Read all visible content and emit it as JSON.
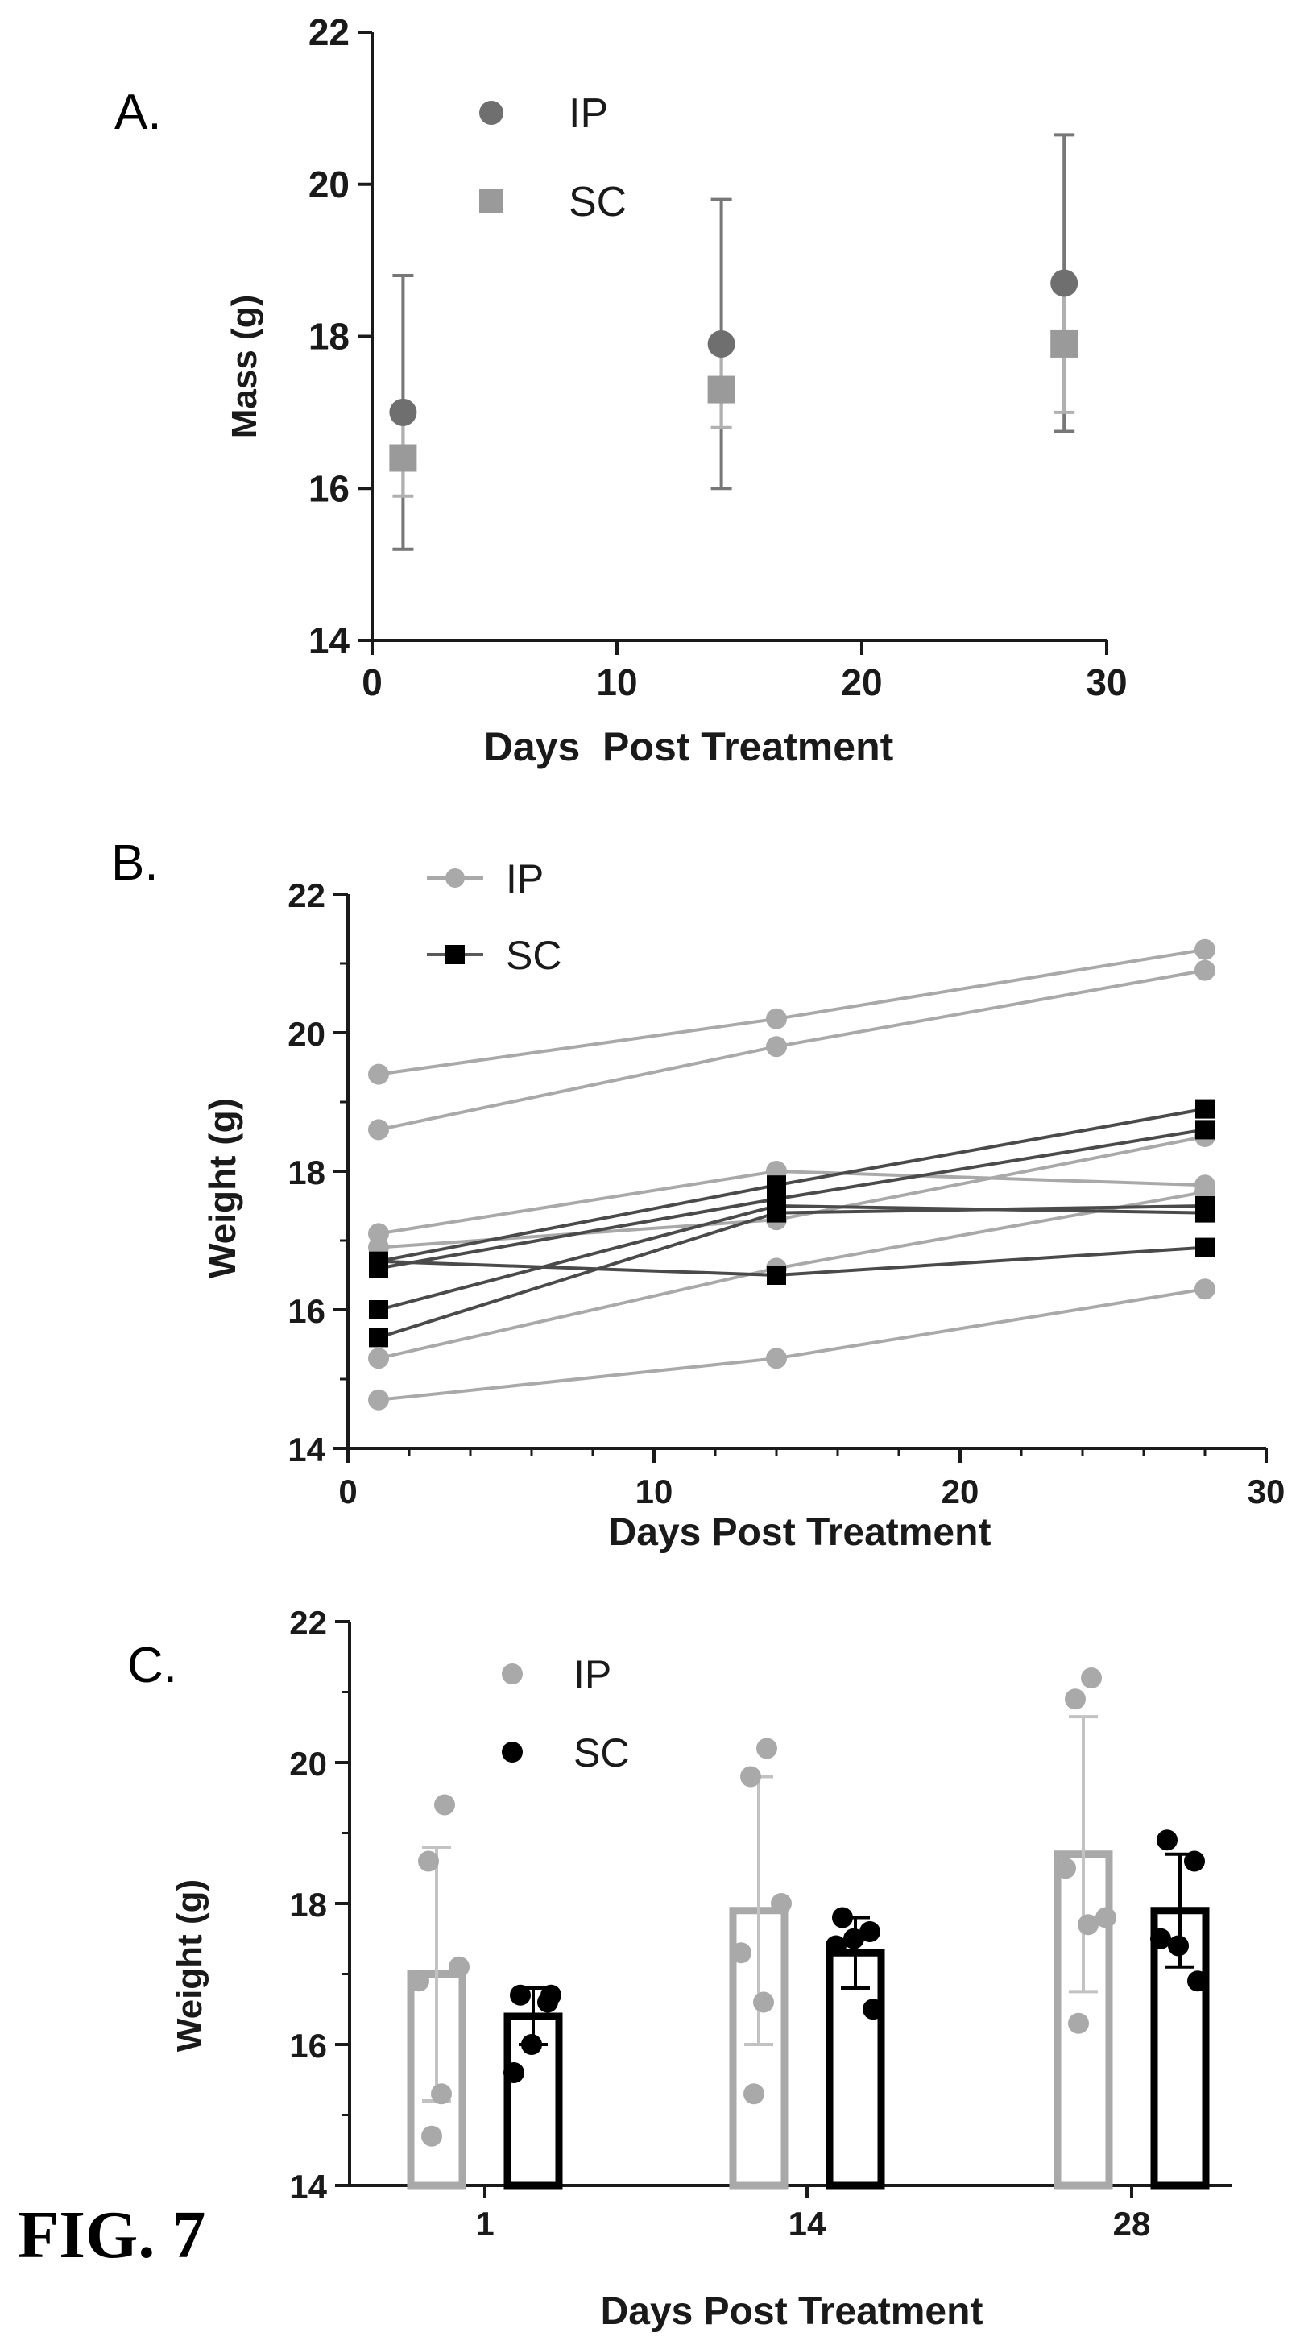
{
  "figure_label": "FIG. 7",
  "colors": {
    "ip": "#6f6f6f",
    "ip_light": "#a9a9a9",
    "sc": "#9a9a9a",
    "sc_dark": "#000000",
    "axis": "#1a1a1a"
  },
  "chart_data": [
    {
      "panel": "A.",
      "type": "scatter",
      "xlabel": "Days  Post Treatment",
      "ylabel": "Mass (g)",
      "xlim": [
        0,
        30
      ],
      "ylim": [
        14,
        22
      ],
      "xticks": [
        0,
        10,
        20,
        30
      ],
      "yticks": [
        14,
        16,
        18,
        20,
        22
      ],
      "legend": "top-left",
      "grid": false,
      "series": [
        {
          "name": "IP",
          "marker": "circle",
          "x": [
            1,
            14,
            28
          ],
          "y": [
            17.0,
            17.9,
            18.7
          ],
          "error": [
            1.8,
            1.9,
            1.95
          ]
        },
        {
          "name": "SC",
          "marker": "square",
          "x": [
            1,
            14,
            28
          ],
          "y": [
            16.4,
            17.3,
            17.9
          ],
          "error": [
            0.5,
            0.5,
            0.9
          ]
        }
      ]
    },
    {
      "panel": "B.",
      "type": "line",
      "xlabel": "Days Post Treatment",
      "ylabel": "Weight (g)",
      "xlim": [
        0,
        30
      ],
      "ylim": [
        14,
        22
      ],
      "xticks": [
        0,
        10,
        20,
        30
      ],
      "yticks": [
        14,
        16,
        18,
        20,
        22
      ],
      "legend": "top-left",
      "grid": false,
      "x": [
        1,
        14,
        28
      ],
      "series": [
        {
          "name": "IP",
          "marker": "circle",
          "lines": [
            [
              19.4,
              20.2,
              21.2
            ],
            [
              18.6,
              19.8,
              20.9
            ],
            [
              17.1,
              18.0,
              17.8
            ],
            [
              16.9,
              17.3,
              18.5
            ],
            [
              15.3,
              16.6,
              17.7
            ],
            [
              14.7,
              15.3,
              16.3
            ]
          ]
        },
        {
          "name": "SC",
          "marker": "square",
          "lines": [
            [
              16.7,
              17.8,
              18.9
            ],
            [
              16.6,
              17.6,
              18.6
            ],
            [
              16.0,
              17.5,
              17.4
            ],
            [
              16.7,
              16.5,
              16.9
            ],
            [
              15.6,
              17.4,
              17.5
            ]
          ]
        }
      ]
    },
    {
      "panel": "C.",
      "type": "bar",
      "xlabel": "Days Post Treatment",
      "ylabel": "Weight (g)",
      "categories": [
        "1",
        "14",
        "28"
      ],
      "ylim": [
        14,
        22
      ],
      "yticks": [
        14,
        16,
        18,
        20,
        22
      ],
      "legend": "top-left",
      "grid": false,
      "series": [
        {
          "name": "IP",
          "values": [
            17.0,
            17.9,
            18.7
          ],
          "error": [
            1.8,
            1.9,
            1.95
          ],
          "points": [
            [
              19.4,
              18.6,
              17.1,
              16.9,
              15.3,
              14.7
            ],
            [
              20.2,
              19.8,
              18.0,
              17.3,
              16.6,
              15.3
            ],
            [
              21.2,
              20.9,
              17.8,
              18.5,
              17.7,
              16.3
            ]
          ]
        },
        {
          "name": "SC",
          "values": [
            16.4,
            17.3,
            17.9
          ],
          "error": [
            0.4,
            0.5,
            0.8
          ],
          "points": [
            [
              16.7,
              16.6,
              16.0,
              16.7,
              15.6
            ],
            [
              17.8,
              17.6,
              17.5,
              16.5,
              17.4
            ],
            [
              18.9,
              18.6,
              17.4,
              16.9,
              17.5
            ]
          ]
        }
      ]
    }
  ]
}
